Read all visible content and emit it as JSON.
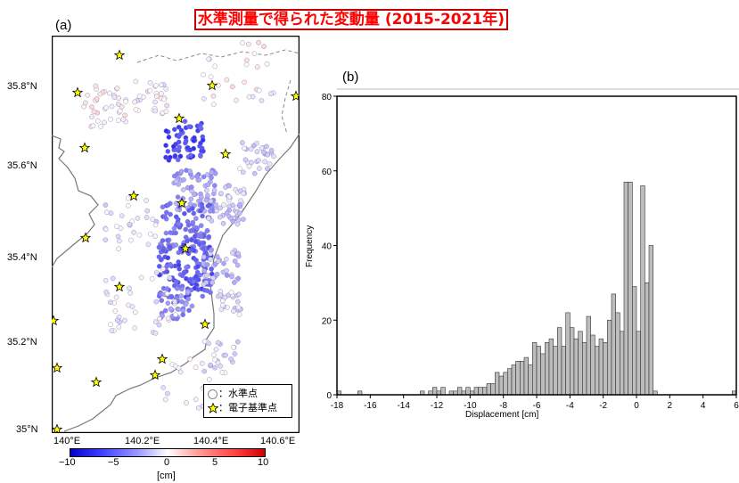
{
  "title": "水準測量で得られた変動量 (2015-2021年)",
  "map": {
    "panel_label": "(a)",
    "lat_ticks": [
      "35.8°N",
      "35.6°N",
      "35.4°N",
      "35.2°N",
      "35°N"
    ],
    "lon_ticks": [
      "140°E",
      "140.2°E",
      "140.4°E",
      "140.6°E"
    ],
    "legend": {
      "circle_label": "：水準点",
      "star_label": "：電子基準点"
    },
    "colorbar": {
      "ticks": [
        "−10",
        "−5",
        "0",
        "5",
        "10"
      ],
      "unit": "[cm]",
      "range": [
        -10,
        10
      ]
    },
    "colors": {
      "subsidence": "#1a1aff",
      "uplift": "#ff0000",
      "neutral": "#ffffff",
      "star": "#ffff00"
    }
  },
  "chart_data": {
    "type": "bar",
    "panel_label": "(b)",
    "xlabel": "Displacement [cm]",
    "ylabel": "Frequency",
    "xlim": [
      -18,
      6
    ],
    "ylim": [
      0,
      80
    ],
    "xticks": [
      -18,
      -16,
      -14,
      -12,
      -10,
      -8,
      -6,
      -4,
      -2,
      0,
      2,
      4,
      6
    ],
    "yticks": [
      0,
      20,
      40,
      60,
      80
    ],
    "bin_width": 0.25,
    "bars": [
      {
        "x": -18.0,
        "y": 1
      },
      {
        "x": -16.75,
        "y": 1
      },
      {
        "x": -13.0,
        "y": 1
      },
      {
        "x": -12.5,
        "y": 1
      },
      {
        "x": -12.25,
        "y": 2
      },
      {
        "x": -12.0,
        "y": 1
      },
      {
        "x": -11.75,
        "y": 2
      },
      {
        "x": -11.25,
        "y": 1
      },
      {
        "x": -11.0,
        "y": 1
      },
      {
        "x": -10.75,
        "y": 2
      },
      {
        "x": -10.5,
        "y": 1
      },
      {
        "x": -10.25,
        "y": 2
      },
      {
        "x": -10.0,
        "y": 1
      },
      {
        "x": -9.75,
        "y": 2
      },
      {
        "x": -9.5,
        "y": 2
      },
      {
        "x": -9.25,
        "y": 2
      },
      {
        "x": -9.0,
        "y": 3
      },
      {
        "x": -8.75,
        "y": 3
      },
      {
        "x": -8.5,
        "y": 6
      },
      {
        "x": -8.25,
        "y": 5
      },
      {
        "x": -8.0,
        "y": 6
      },
      {
        "x": -7.75,
        "y": 7
      },
      {
        "x": -7.5,
        "y": 8
      },
      {
        "x": -7.25,
        "y": 9
      },
      {
        "x": -7.0,
        "y": 9
      },
      {
        "x": -6.75,
        "y": 10
      },
      {
        "x": -6.5,
        "y": 8
      },
      {
        "x": -6.25,
        "y": 14
      },
      {
        "x": -6.0,
        "y": 13
      },
      {
        "x": -5.75,
        "y": 11
      },
      {
        "x": -5.5,
        "y": 14
      },
      {
        "x": -5.25,
        "y": 15
      },
      {
        "x": -5.0,
        "y": 13
      },
      {
        "x": -4.75,
        "y": 18
      },
      {
        "x": -4.5,
        "y": 13
      },
      {
        "x": -4.25,
        "y": 22
      },
      {
        "x": -4.0,
        "y": 18
      },
      {
        "x": -3.75,
        "y": 15
      },
      {
        "x": -3.5,
        "y": 17
      },
      {
        "x": -3.25,
        "y": 14
      },
      {
        "x": -3.0,
        "y": 21
      },
      {
        "x": -2.75,
        "y": 16
      },
      {
        "x": -2.5,
        "y": 13
      },
      {
        "x": -2.25,
        "y": 15
      },
      {
        "x": -2.0,
        "y": 14
      },
      {
        "x": -1.75,
        "y": 20
      },
      {
        "x": -1.5,
        "y": 27
      },
      {
        "x": -1.25,
        "y": 22
      },
      {
        "x": -1.0,
        "y": 17
      },
      {
        "x": -0.75,
        "y": 57
      },
      {
        "x": -0.5,
        "y": 57
      },
      {
        "x": -0.25,
        "y": 29
      },
      {
        "x": 0.0,
        "y": 17
      },
      {
        "x": 0.25,
        "y": 56
      },
      {
        "x": 0.5,
        "y": 30
      },
      {
        "x": 0.75,
        "y": 40
      },
      {
        "x": 1.0,
        "y": 1
      },
      {
        "x": 5.75,
        "y": 1
      }
    ]
  }
}
